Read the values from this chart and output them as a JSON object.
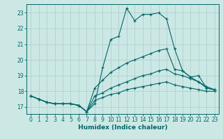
{
  "xlabel": "Humidex (Indice chaleur)",
  "background_color": "#cce8e5",
  "grid_color": "#b0d0ce",
  "line_color": "#006666",
  "xlim": [
    -0.5,
    23.5
  ],
  "ylim": [
    16.55,
    23.55
  ],
  "yticks": [
    17,
    18,
    19,
    20,
    21,
    22,
    23
  ],
  "xticks": [
    0,
    1,
    2,
    3,
    4,
    5,
    6,
    7,
    8,
    9,
    10,
    11,
    12,
    13,
    14,
    15,
    16,
    17,
    18,
    19,
    20,
    21,
    22,
    23
  ],
  "line1_x": [
    0,
    1,
    2,
    3,
    4,
    5,
    6,
    7,
    8,
    9,
    10,
    11,
    12,
    13,
    14,
    15,
    16,
    17,
    18,
    19,
    20,
    21,
    22,
    23
  ],
  "line1_y": [
    17.7,
    17.5,
    17.3,
    17.2,
    17.2,
    17.2,
    17.1,
    16.7,
    17.2,
    19.5,
    21.3,
    21.5,
    23.3,
    22.5,
    22.9,
    22.9,
    23.0,
    22.6,
    20.7,
    19.3,
    18.9,
    19.0,
    18.2,
    18.1
  ],
  "line2_x": [
    0,
    1,
    2,
    3,
    4,
    5,
    6,
    7,
    8,
    9,
    10,
    11,
    12,
    13,
    14,
    15,
    16,
    17,
    18,
    19,
    20,
    21,
    22,
    23
  ],
  "line2_y": [
    17.7,
    17.5,
    17.3,
    17.2,
    17.2,
    17.2,
    17.1,
    16.7,
    18.2,
    18.7,
    19.2,
    19.5,
    19.8,
    20.0,
    20.2,
    20.4,
    20.6,
    20.7,
    19.4,
    19.3,
    18.9,
    18.6,
    18.2,
    18.1
  ],
  "line3_x": [
    0,
    1,
    2,
    3,
    4,
    5,
    6,
    7,
    8,
    9,
    10,
    11,
    12,
    13,
    14,
    15,
    16,
    17,
    18,
    19,
    20,
    21,
    22,
    23
  ],
  "line3_y": [
    17.7,
    17.5,
    17.3,
    17.2,
    17.2,
    17.2,
    17.1,
    16.7,
    17.7,
    17.9,
    18.2,
    18.4,
    18.6,
    18.8,
    19.0,
    19.1,
    19.3,
    19.4,
    19.1,
    19.0,
    18.8,
    18.6,
    18.3,
    18.1
  ],
  "line4_x": [
    0,
    1,
    2,
    3,
    4,
    5,
    6,
    7,
    8,
    9,
    10,
    11,
    12,
    13,
    14,
    15,
    16,
    17,
    18,
    19,
    20,
    21,
    22,
    23
  ],
  "line4_y": [
    17.7,
    17.5,
    17.3,
    17.2,
    17.2,
    17.2,
    17.1,
    16.7,
    17.4,
    17.6,
    17.8,
    17.9,
    18.1,
    18.2,
    18.3,
    18.4,
    18.5,
    18.6,
    18.4,
    18.3,
    18.2,
    18.1,
    18.0,
    18.0
  ]
}
